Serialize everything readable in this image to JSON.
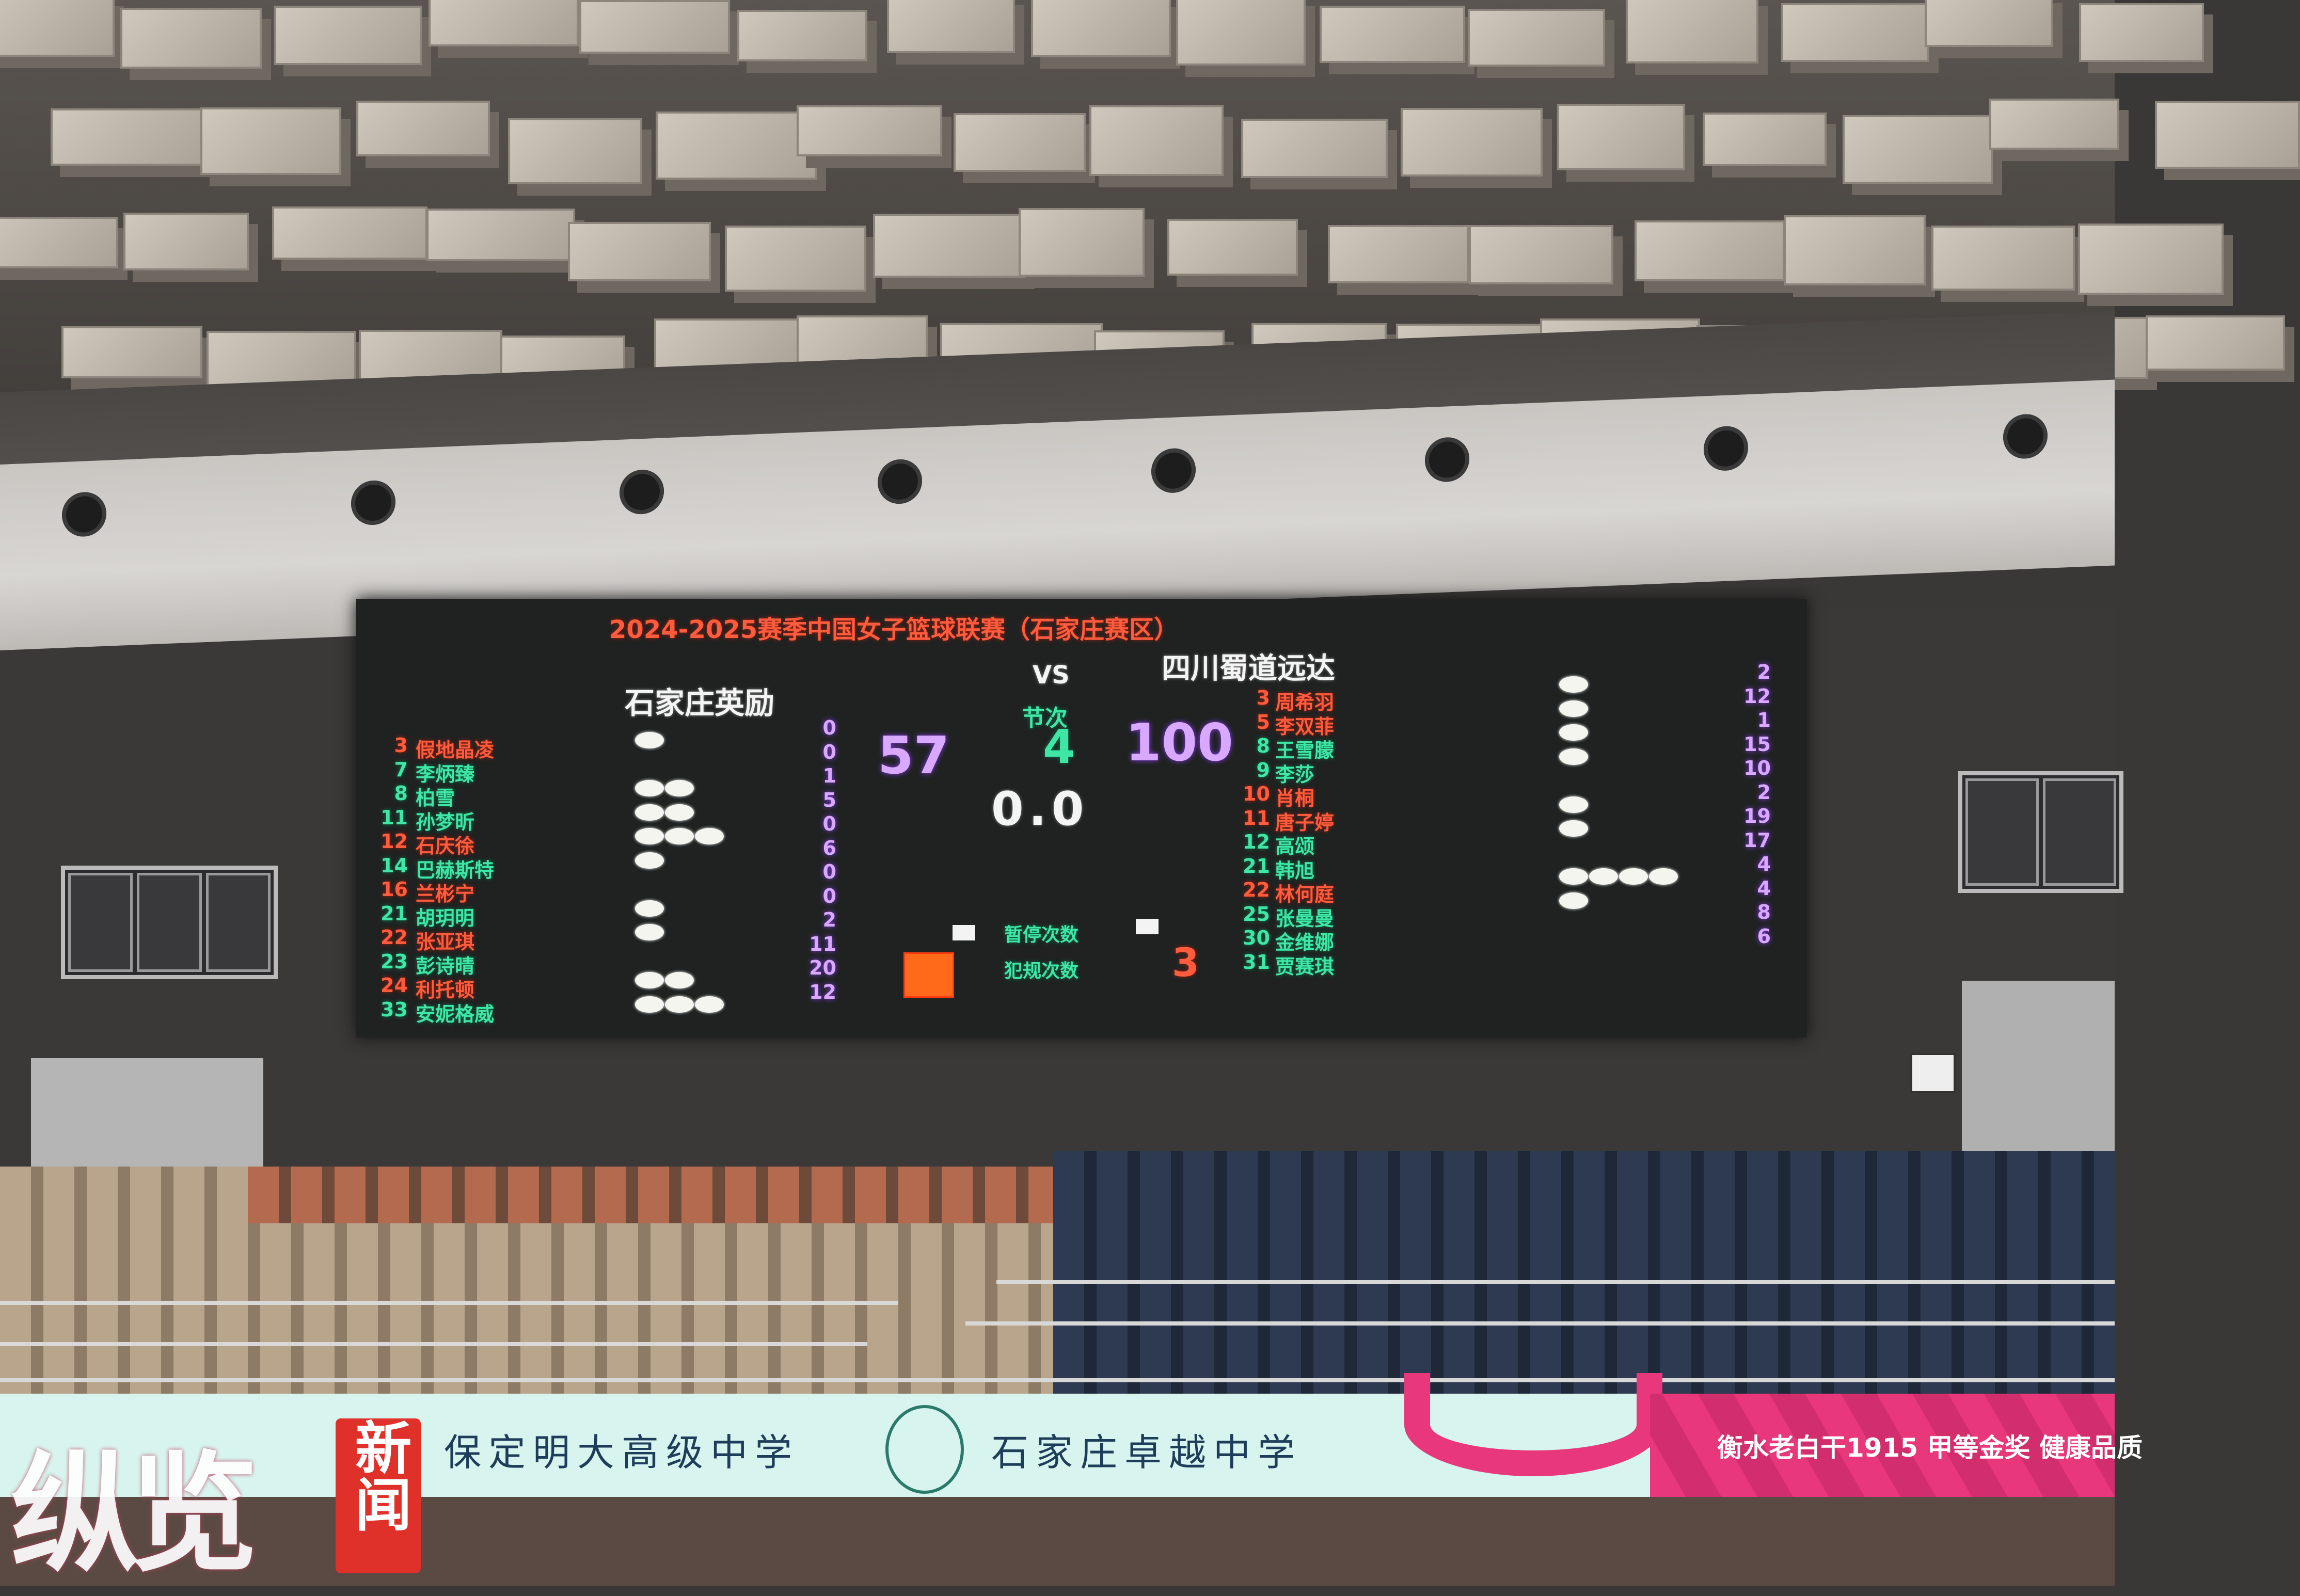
{
  "scoreboard": {
    "title": "2024-2025赛季中国女子篮球联赛（石家庄赛区）",
    "vs": "VS",
    "period_label": "节次",
    "period": "4",
    "home_score": "57",
    "away_score": "100",
    "clock": "0.0",
    "timeouts_label": "暂停次数",
    "fouls_label": "犯规次数",
    "team_fouls": "3",
    "home": {
      "name": "石家庄英励",
      "players": [
        {
          "number": "3",
          "name": "假地晶凌",
          "points": "0",
          "fouls": 1,
          "color": "red"
        },
        {
          "number": "7",
          "name": "李炳臻",
          "points": "0",
          "fouls": 0,
          "color": "green"
        },
        {
          "number": "8",
          "name": "柏雪",
          "points": "1",
          "fouls": 2,
          "color": "green"
        },
        {
          "number": "11",
          "name": "孙梦昕",
          "points": "5",
          "fouls": 2,
          "color": "green"
        },
        {
          "number": "12",
          "name": "石庆徐",
          "points": "0",
          "fouls": 3,
          "color": "red"
        },
        {
          "number": "14",
          "name": "巴赫斯特",
          "points": "6",
          "fouls": 1,
          "color": "green"
        },
        {
          "number": "16",
          "name": "兰彬宁",
          "points": "0",
          "fouls": 0,
          "color": "red"
        },
        {
          "number": "21",
          "name": "胡玥明",
          "points": "0",
          "fouls": 1,
          "color": "green"
        },
        {
          "number": "22",
          "name": "张亚琪",
          "points": "2",
          "fouls": 1,
          "color": "red"
        },
        {
          "number": "23",
          "name": "彭诗晴",
          "points": "11",
          "fouls": 0,
          "color": "green"
        },
        {
          "number": "24",
          "name": "利托顿",
          "points": "20",
          "fouls": 2,
          "color": "red"
        },
        {
          "number": "33",
          "name": "安妮格威",
          "points": "12",
          "fouls": 3,
          "color": "green"
        }
      ]
    },
    "away": {
      "name": "四川蜀道远达",
      "players": [
        {
          "number": "3",
          "name": "周希羽",
          "points": "2",
          "fouls": 1,
          "color": "red"
        },
        {
          "number": "5",
          "name": "李双菲",
          "points": "12",
          "fouls": 1,
          "color": "red"
        },
        {
          "number": "8",
          "name": "王雪朦",
          "points": "1",
          "fouls": 1,
          "color": "green"
        },
        {
          "number": "9",
          "name": "李莎",
          "points": "15",
          "fouls": 1,
          "color": "green"
        },
        {
          "number": "10",
          "name": "肖桐",
          "points": "10",
          "fouls": 0,
          "color": "red"
        },
        {
          "number": "11",
          "name": "唐子婷",
          "points": "2",
          "fouls": 1,
          "color": "red"
        },
        {
          "number": "12",
          "name": "高颂",
          "points": "19",
          "fouls": 1,
          "color": "green"
        },
        {
          "number": "21",
          "name": "韩旭",
          "points": "17",
          "fouls": 0,
          "color": "green"
        },
        {
          "number": "22",
          "name": "林何庭",
          "points": "4",
          "fouls": 4,
          "color": "red"
        },
        {
          "number": "25",
          "name": "张曼曼",
          "points": "4",
          "fouls": 1,
          "color": "green"
        },
        {
          "number": "30",
          "name": "金维娜",
          "points": "8",
          "fouls": 0,
          "color": "green"
        },
        {
          "number": "31",
          "name": "贾赛琪",
          "points": "6",
          "fouls": 0,
          "color": "green"
        }
      ]
    },
    "colors": {
      "red": "#ff5b3d",
      "green": "#3fe6a6",
      "points": "#d9a8ff",
      "possession": "#ff6a1a"
    }
  },
  "banner": {
    "school_1": "保定明大高级中学",
    "school_2": "石家庄卓越中学",
    "sponsor": "衡水老白干1915 甲等金奖 健康品质"
  },
  "watermark": {
    "brand": "纵览",
    "badge": "新闻"
  }
}
